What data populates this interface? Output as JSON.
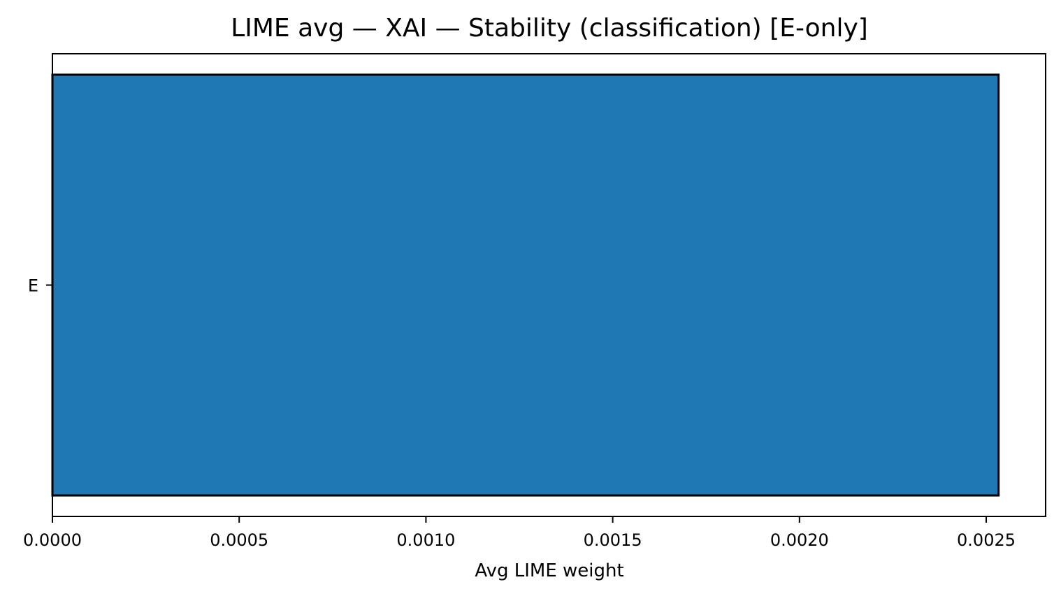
{
  "chart_data": {
    "type": "bar",
    "orientation": "horizontal",
    "title": "LIME avg — XAI — Stability (classification) [E-only]",
    "xlabel": "Avg LIME weight",
    "ylabel": "",
    "categories": [
      "E"
    ],
    "values": [
      0.002533
    ],
    "xlim": [
      0,
      0.002659
    ],
    "xticks": [
      0.0,
      0.0005,
      0.001,
      0.0015,
      0.002,
      0.0025
    ],
    "xtick_labels": [
      "0.0000",
      "0.0005",
      "0.0010",
      "0.0015",
      "0.0020",
      "0.0025"
    ],
    "grid": false,
    "legend": "none",
    "colors": {
      "bar_fill": "#1f77b4",
      "bar_edge": "#000000",
      "axes": "#000000"
    }
  }
}
